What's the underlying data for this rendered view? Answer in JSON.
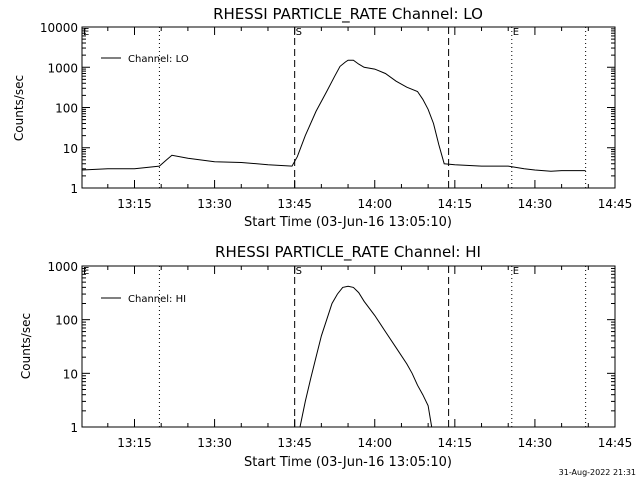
{
  "footer": {
    "timestamp": "31-Aug-2022 21:31"
  },
  "chart_data": [
    {
      "type": "line",
      "title": "RHESSI PARTICLE_RATE Channel: LO",
      "xlabel": "Start Time (03-Jun-16 13:05:10)",
      "ylabel": "Counts/sec",
      "yscale": "log",
      "ylim": [
        1,
        10000
      ],
      "xlim": [
        "13:05:10",
        "14:45:00"
      ],
      "xtick_labels": [
        "13:15",
        "13:30",
        "13:45",
        "14:00",
        "14:15",
        "14:30",
        "14:45"
      ],
      "ytick_labels": [
        "1",
        "10",
        "100",
        "1000",
        "10000"
      ],
      "grid": false,
      "legend": {
        "position": "top-left",
        "entries": [
          "Channel: LO"
        ]
      },
      "markers": [
        {
          "label": "E",
          "time": "13:05:10",
          "style": "none"
        },
        {
          "label": "",
          "time": "13:19:40",
          "style": "dotted"
        },
        {
          "label": "S",
          "time": "13:45:00",
          "style": "dashed"
        },
        {
          "label": "",
          "time": "14:13:50",
          "style": "dashed"
        },
        {
          "label": "E",
          "time": "14:25:40",
          "style": "dotted"
        },
        {
          "label": "",
          "time": "14:39:30",
          "style": "dotted"
        }
      ],
      "series": [
        {
          "name": "Channel: LO",
          "x": [
            "13:05:10",
            "13:10:00",
            "13:15:00",
            "13:19:40",
            "13:21:00",
            "13:22:00",
            "13:25:00",
            "13:30:00",
            "13:35:00",
            "13:40:00",
            "13:44:30",
            "13:45:30",
            "13:47:00",
            "13:49:00",
            "13:51:00",
            "13:52:30",
            "13:53:30",
            "13:54:30",
            "13:55:00",
            "13:56:00",
            "13:57:00",
            "13:58:00",
            "14:00:00",
            "14:02:00",
            "14:04:00",
            "14:06:00",
            "14:08:00",
            "14:09:00",
            "14:10:00",
            "14:11:00",
            "14:12:00",
            "14:13:00",
            "14:15:00",
            "14:20:00",
            "14:25:00",
            "14:28:00",
            "14:30:00",
            "14:33:00",
            "14:35:00",
            "14:39:30"
          ],
          "y": [
            2.8,
            3.0,
            3.0,
            3.5,
            5.0,
            6.5,
            5.5,
            4.5,
            4.3,
            3.8,
            3.5,
            6,
            20,
            80,
            250,
            600,
            1050,
            1350,
            1500,
            1500,
            1200,
            1000,
            900,
            700,
            450,
            320,
            250,
            160,
            90,
            40,
            12,
            4.0,
            3.8,
            3.5,
            3.5,
            3.0,
            2.8,
            2.6,
            2.7,
            2.7
          ]
        }
      ]
    },
    {
      "type": "line",
      "title": "RHESSI PARTICLE_RATE Channel: HI",
      "xlabel": "Start Time (03-Jun-16 13:05:10)",
      "ylabel": "Counts/sec",
      "yscale": "log",
      "ylim": [
        1,
        1000
      ],
      "xlim": [
        "13:05:10",
        "14:45:00"
      ],
      "xtick_labels": [
        "13:15",
        "13:30",
        "13:45",
        "14:00",
        "14:15",
        "14:30",
        "14:45"
      ],
      "ytick_labels": [
        "1",
        "10",
        "100",
        "1000"
      ],
      "grid": false,
      "legend": {
        "position": "top-left",
        "entries": [
          "Channel: HI"
        ]
      },
      "markers": [
        {
          "label": "E",
          "time": "13:05:10",
          "style": "none"
        },
        {
          "label": "",
          "time": "13:19:40",
          "style": "dotted"
        },
        {
          "label": "S",
          "time": "13:45:00",
          "style": "dashed"
        },
        {
          "label": "",
          "time": "14:13:50",
          "style": "dashed"
        },
        {
          "label": "E",
          "time": "14:25:40",
          "style": "dotted"
        },
        {
          "label": "",
          "time": "14:39:30",
          "style": "dotted"
        }
      ],
      "series": [
        {
          "name": "Channel: HI",
          "x": [
            "13:46:00",
            "13:47:00",
            "13:48:00",
            "13:49:00",
            "13:50:00",
            "13:51:00",
            "13:52:00",
            "13:53:00",
            "13:54:00",
            "13:55:00",
            "13:56:00",
            "13:57:00",
            "13:58:00",
            "14:00:00",
            "14:02:00",
            "14:04:00",
            "14:06:00",
            "14:07:00",
            "14:08:00",
            "14:09:00",
            "14:10:00",
            "14:10:40"
          ],
          "y": [
            1,
            3,
            8,
            20,
            50,
            100,
            200,
            300,
            400,
            420,
            400,
            320,
            220,
            120,
            60,
            30,
            15,
            10,
            6,
            4,
            2.5,
            1
          ]
        }
      ]
    }
  ]
}
